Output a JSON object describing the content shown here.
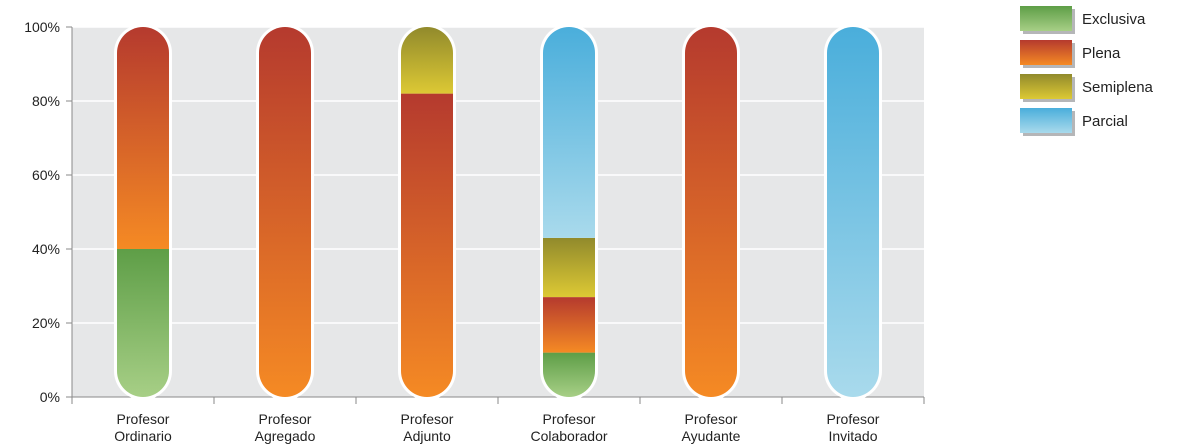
{
  "chart_data": {
    "type": "bar",
    "stacked": true,
    "categories": [
      [
        "Profesor",
        "Ordinario"
      ],
      [
        "Profesor",
        "Agregado"
      ],
      [
        "Profesor",
        "Adjunto"
      ],
      [
        "Profesor",
        "Colaborador"
      ],
      [
        "Profesor",
        "Ayudante"
      ],
      [
        "Profesor",
        "Invitado"
      ]
    ],
    "series": [
      {
        "name": "Exclusiva",
        "values": [
          40,
          0,
          0,
          12,
          0,
          0
        ]
      },
      {
        "name": "Plena",
        "values": [
          60,
          100,
          82,
          15,
          100,
          0
        ]
      },
      {
        "name": "Semiplena",
        "values": [
          0,
          0,
          18,
          16,
          0,
          0
        ]
      },
      {
        "name": "Parcial",
        "values": [
          0,
          0,
          0,
          57,
          0,
          100
        ]
      }
    ],
    "y_ticks": [
      "0%",
      "20%",
      "40%",
      "60%",
      "80%",
      "100%"
    ],
    "ylim": [
      0,
      100
    ],
    "grid": true,
    "legend_position": "top-right",
    "colors": {
      "Exclusiva": [
        "#a7cf86",
        "#5e9e47"
      ],
      "Plena": [
        "#f58a24",
        "#b53a2e"
      ],
      "Semiplena": [
        "#ddc934",
        "#918a2c"
      ],
      "Parcial": [
        "#a9daec",
        "#4aaedb"
      ]
    },
    "plot_background": "#e6e7e8"
  }
}
